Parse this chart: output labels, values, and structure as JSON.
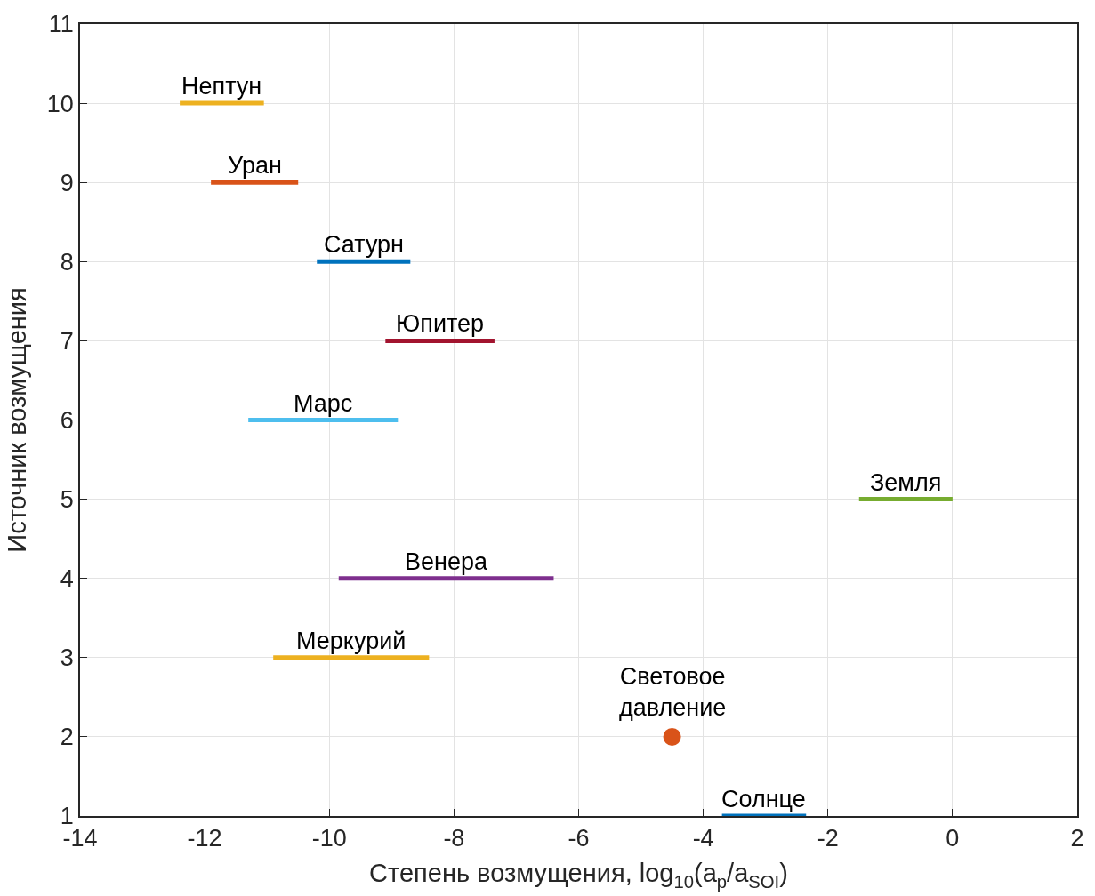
{
  "chart_data": {
    "type": "line",
    "xlabel": "Степень возмущения, log$_{10}$(a$_{p}$/a$_{SOI}$)",
    "ylabel": "Источник возмущения",
    "xlim": [
      -14,
      2
    ],
    "xticks": [
      -14,
      -12,
      -10,
      -8,
      -6,
      -4,
      -2,
      0,
      2
    ],
    "ylim": [
      1,
      11
    ],
    "yticks": [
      1,
      2,
      3,
      4,
      5,
      6,
      7,
      8,
      9,
      10,
      11
    ],
    "grid": true,
    "legend": false,
    "marker": "none",
    "line_style": "solid",
    "series": [
      {
        "name": "Нептун",
        "color": "#edb120",
        "x": [
          -12.4,
          -11.05
        ],
        "values": [
          10,
          10
        ]
      },
      {
        "name": "Уран",
        "color": "#d95319",
        "x": [
          -11.9,
          -10.5
        ],
        "values": [
          9,
          9
        ]
      },
      {
        "name": "Сатурн",
        "color": "#0072bd",
        "x": [
          -10.2,
          -8.7
        ],
        "values": [
          8,
          8
        ]
      },
      {
        "name": "Юпитер",
        "color": "#a2142f",
        "x": [
          -9.1,
          -7.35
        ],
        "values": [
          7,
          7
        ]
      },
      {
        "name": "Марс",
        "color": "#4dbeee",
        "x": [
          -11.3,
          -8.9
        ],
        "values": [
          6,
          6
        ]
      },
      {
        "name": "Земля",
        "color": "#77ac30",
        "x": [
          -1.5,
          0
        ],
        "values": [
          5,
          5
        ]
      },
      {
        "name": "Венера",
        "color": "#7e2f8e",
        "x": [
          -9.85,
          -6.4
        ],
        "values": [
          4,
          4
        ]
      },
      {
        "name": "Меркурий",
        "color": "#edb120",
        "x": [
          -10.9,
          -8.4
        ],
        "values": [
          3,
          3
        ]
      },
      {
        "name": "Световое давление",
        "type": "scatter",
        "marker": "circle",
        "color": "#d95319",
        "x": [
          -4.5
        ],
        "values": [
          2
        ]
      },
      {
        "name": "Солнце",
        "color": "#0072bd",
        "x": [
          -3.7,
          -2.35
        ],
        "values": [
          1,
          1
        ]
      }
    ]
  }
}
